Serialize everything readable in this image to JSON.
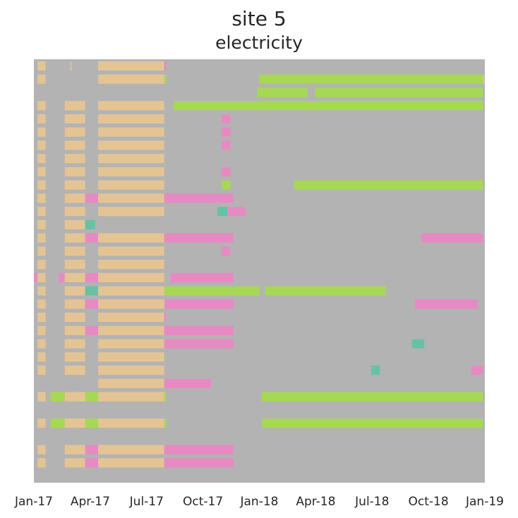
{
  "chart_data": {
    "type": "heatmap",
    "title": "site 5",
    "subtitle": "electricity",
    "xlabel": "",
    "ylabel": "",
    "x_tick_labels": [
      "Jan-17",
      "Apr-17",
      "Jul-17",
      "Oct-17",
      "Jan-18",
      "Apr-18",
      "Jul-18",
      "Oct-18",
      "Jan-19"
    ],
    "x_range": [
      "2017-01-01",
      "2019-01-01"
    ],
    "n_rows": 32,
    "grid": false,
    "legend": "none",
    "colors": {
      "background": "#b3b3b3",
      "beige": "#e5c494",
      "green": "#a6d854",
      "pink": "#e78ac3",
      "teal": "#66c2a5",
      "orange": "#fc8d62"
    },
    "segments": [
      {
        "row": 0,
        "start": "2017-01-07",
        "end": "2017-01-20",
        "color": "beige"
      },
      {
        "row": 0,
        "start": "2017-03-01",
        "end": "2017-03-03",
        "color": "beige"
      },
      {
        "row": 0,
        "start": "2017-04-15",
        "end": "2017-07-31",
        "color": "beige"
      },
      {
        "row": 0,
        "start": "2017-07-31",
        "end": "2017-08-03",
        "color": "pink"
      },
      {
        "row": 1,
        "start": "2017-01-07",
        "end": "2017-01-20",
        "color": "beige"
      },
      {
        "row": 1,
        "start": "2017-04-15",
        "end": "2017-07-31",
        "color": "beige"
      },
      {
        "row": 1,
        "start": "2017-07-31",
        "end": "2017-08-03",
        "color": "green"
      },
      {
        "row": 1,
        "start": "2018-01-01",
        "end": "2018-12-29",
        "color": "green"
      },
      {
        "row": 1,
        "start": "2018-12-29",
        "end": "2018-12-31",
        "color": "beige"
      },
      {
        "row": 2,
        "start": "2017-12-28",
        "end": "2018-03-20",
        "color": "green"
      },
      {
        "row": 2,
        "start": "2018-04-01",
        "end": "2018-12-29",
        "color": "green"
      },
      {
        "row": 3,
        "start": "2017-01-07",
        "end": "2017-01-20",
        "color": "beige"
      },
      {
        "row": 3,
        "start": "2017-02-20",
        "end": "2017-03-25",
        "color": "beige"
      },
      {
        "row": 3,
        "start": "2017-04-15",
        "end": "2017-07-31",
        "color": "beige"
      },
      {
        "row": 3,
        "start": "2017-08-15",
        "end": "2017-12-20",
        "color": "green"
      },
      {
        "row": 3,
        "start": "2017-12-20",
        "end": "2018-12-29",
        "color": "green"
      },
      {
        "row": 4,
        "start": "2017-01-07",
        "end": "2017-01-20",
        "color": "beige"
      },
      {
        "row": 4,
        "start": "2017-02-20",
        "end": "2017-03-25",
        "color": "beige"
      },
      {
        "row": 4,
        "start": "2017-04-15",
        "end": "2017-07-31",
        "color": "beige"
      },
      {
        "row": 4,
        "start": "2017-11-01",
        "end": "2017-11-15",
        "color": "pink"
      },
      {
        "row": 5,
        "start": "2017-01-07",
        "end": "2017-01-20",
        "color": "beige"
      },
      {
        "row": 5,
        "start": "2017-02-20",
        "end": "2017-03-25",
        "color": "beige"
      },
      {
        "row": 5,
        "start": "2017-04-15",
        "end": "2017-07-31",
        "color": "beige"
      },
      {
        "row": 5,
        "start": "2017-11-01",
        "end": "2017-11-15",
        "color": "pink"
      },
      {
        "row": 6,
        "start": "2017-01-07",
        "end": "2017-01-20",
        "color": "beige"
      },
      {
        "row": 6,
        "start": "2017-02-20",
        "end": "2017-03-25",
        "color": "beige"
      },
      {
        "row": 6,
        "start": "2017-04-15",
        "end": "2017-07-31",
        "color": "beige"
      },
      {
        "row": 6,
        "start": "2017-11-01",
        "end": "2017-11-15",
        "color": "pink"
      },
      {
        "row": 7,
        "start": "2017-01-07",
        "end": "2017-01-20",
        "color": "beige"
      },
      {
        "row": 7,
        "start": "2017-02-20",
        "end": "2017-03-25",
        "color": "beige"
      },
      {
        "row": 7,
        "start": "2017-04-15",
        "end": "2017-07-31",
        "color": "beige"
      },
      {
        "row": 8,
        "start": "2017-01-07",
        "end": "2017-01-20",
        "color": "beige"
      },
      {
        "row": 8,
        "start": "2017-02-20",
        "end": "2017-03-25",
        "color": "beige"
      },
      {
        "row": 8,
        "start": "2017-04-15",
        "end": "2017-07-31",
        "color": "beige"
      },
      {
        "row": 8,
        "start": "2017-11-01",
        "end": "2017-11-15",
        "color": "pink"
      },
      {
        "row": 9,
        "start": "2017-01-07",
        "end": "2017-01-20",
        "color": "beige"
      },
      {
        "row": 9,
        "start": "2017-02-20",
        "end": "2017-03-25",
        "color": "beige"
      },
      {
        "row": 9,
        "start": "2017-04-15",
        "end": "2017-07-31",
        "color": "beige"
      },
      {
        "row": 9,
        "start": "2017-11-01",
        "end": "2017-11-15",
        "color": "green"
      },
      {
        "row": 9,
        "start": "2018-02-26",
        "end": "2018-12-29",
        "color": "green"
      },
      {
        "row": 10,
        "start": "2017-01-07",
        "end": "2017-01-20",
        "color": "beige"
      },
      {
        "row": 10,
        "start": "2017-02-20",
        "end": "2017-03-25",
        "color": "beige"
      },
      {
        "row": 10,
        "start": "2017-03-25",
        "end": "2017-04-15",
        "color": "pink"
      },
      {
        "row": 10,
        "start": "2017-04-15",
        "end": "2017-07-31",
        "color": "beige"
      },
      {
        "row": 10,
        "start": "2017-07-31",
        "end": "2017-11-20",
        "color": "pink"
      },
      {
        "row": 11,
        "start": "2017-01-07",
        "end": "2017-01-20",
        "color": "beige"
      },
      {
        "row": 11,
        "start": "2017-02-20",
        "end": "2017-03-25",
        "color": "beige"
      },
      {
        "row": 11,
        "start": "2017-04-15",
        "end": "2017-07-31",
        "color": "beige"
      },
      {
        "row": 11,
        "start": "2017-10-25",
        "end": "2017-11-10",
        "color": "teal"
      },
      {
        "row": 11,
        "start": "2017-11-10",
        "end": "2017-12-10",
        "color": "pink"
      },
      {
        "row": 12,
        "start": "2017-01-07",
        "end": "2017-01-20",
        "color": "beige"
      },
      {
        "row": 12,
        "start": "2017-02-20",
        "end": "2017-03-25",
        "color": "beige"
      },
      {
        "row": 12,
        "start": "2017-03-25",
        "end": "2017-04-10",
        "color": "teal"
      },
      {
        "row": 13,
        "start": "2017-01-07",
        "end": "2017-01-20",
        "color": "beige"
      },
      {
        "row": 13,
        "start": "2017-02-20",
        "end": "2017-03-25",
        "color": "beige"
      },
      {
        "row": 13,
        "start": "2017-03-25",
        "end": "2017-04-15",
        "color": "pink"
      },
      {
        "row": 13,
        "start": "2017-04-15",
        "end": "2017-07-31",
        "color": "beige"
      },
      {
        "row": 13,
        "start": "2017-07-31",
        "end": "2017-11-20",
        "color": "pink"
      },
      {
        "row": 13,
        "start": "2018-09-20",
        "end": "2018-12-29",
        "color": "pink"
      },
      {
        "row": 14,
        "start": "2017-01-07",
        "end": "2017-01-20",
        "color": "beige"
      },
      {
        "row": 14,
        "start": "2017-02-20",
        "end": "2017-03-25",
        "color": "beige"
      },
      {
        "row": 14,
        "start": "2017-04-15",
        "end": "2017-07-31",
        "color": "beige"
      },
      {
        "row": 14,
        "start": "2017-11-01",
        "end": "2017-11-15",
        "color": "pink"
      },
      {
        "row": 15,
        "start": "2017-01-07",
        "end": "2017-01-20",
        "color": "beige"
      },
      {
        "row": 15,
        "start": "2017-02-20",
        "end": "2017-03-25",
        "color": "beige"
      },
      {
        "row": 15,
        "start": "2017-04-15",
        "end": "2017-07-31",
        "color": "beige"
      },
      {
        "row": 16,
        "start": "2016-12-28",
        "end": "2017-01-07",
        "color": "pink"
      },
      {
        "row": 16,
        "start": "2017-01-07",
        "end": "2017-01-20",
        "color": "beige"
      },
      {
        "row": 16,
        "start": "2017-02-10",
        "end": "2017-02-20",
        "color": "pink"
      },
      {
        "row": 16,
        "start": "2017-02-20",
        "end": "2017-03-25",
        "color": "beige"
      },
      {
        "row": 16,
        "start": "2017-03-25",
        "end": "2017-04-15",
        "color": "pink"
      },
      {
        "row": 16,
        "start": "2017-04-15",
        "end": "2017-07-31",
        "color": "beige"
      },
      {
        "row": 16,
        "start": "2017-08-10",
        "end": "2017-11-20",
        "color": "pink"
      },
      {
        "row": 17,
        "start": "2017-01-07",
        "end": "2017-01-20",
        "color": "beige"
      },
      {
        "row": 17,
        "start": "2017-02-20",
        "end": "2017-03-25",
        "color": "beige"
      },
      {
        "row": 17,
        "start": "2017-03-25",
        "end": "2017-04-15",
        "color": "teal"
      },
      {
        "row": 17,
        "start": "2017-04-15",
        "end": "2017-07-31",
        "color": "beige"
      },
      {
        "row": 17,
        "start": "2017-07-31",
        "end": "2017-11-20",
        "color": "green"
      },
      {
        "row": 17,
        "start": "2017-11-20",
        "end": "2018-01-01",
        "color": "green"
      },
      {
        "row": 17,
        "start": "2018-01-10",
        "end": "2018-07-25",
        "color": "green"
      },
      {
        "row": 18,
        "start": "2017-01-07",
        "end": "2017-01-20",
        "color": "beige"
      },
      {
        "row": 18,
        "start": "2017-02-20",
        "end": "2017-03-25",
        "color": "beige"
      },
      {
        "row": 18,
        "start": "2017-03-25",
        "end": "2017-04-15",
        "color": "pink"
      },
      {
        "row": 18,
        "start": "2017-04-15",
        "end": "2017-07-31",
        "color": "beige"
      },
      {
        "row": 18,
        "start": "2017-08-01",
        "end": "2017-11-20",
        "color": "pink"
      },
      {
        "row": 18,
        "start": "2018-09-10",
        "end": "2018-12-20",
        "color": "pink"
      },
      {
        "row": 19,
        "start": "2017-01-07",
        "end": "2017-01-20",
        "color": "beige"
      },
      {
        "row": 19,
        "start": "2017-02-20",
        "end": "2017-03-25",
        "color": "beige"
      },
      {
        "row": 19,
        "start": "2017-04-15",
        "end": "2017-07-31",
        "color": "beige"
      },
      {
        "row": 19,
        "start": "2017-07-31",
        "end": "2017-08-03",
        "color": "pink"
      },
      {
        "row": 20,
        "start": "2017-01-07",
        "end": "2017-01-20",
        "color": "beige"
      },
      {
        "row": 20,
        "start": "2017-02-20",
        "end": "2017-03-25",
        "color": "beige"
      },
      {
        "row": 20,
        "start": "2017-03-25",
        "end": "2017-04-15",
        "color": "pink"
      },
      {
        "row": 20,
        "start": "2017-04-15",
        "end": "2017-07-31",
        "color": "beige"
      },
      {
        "row": 20,
        "start": "2017-07-31",
        "end": "2017-11-20",
        "color": "pink"
      },
      {
        "row": 21,
        "start": "2017-01-07",
        "end": "2017-01-20",
        "color": "beige"
      },
      {
        "row": 21,
        "start": "2017-02-20",
        "end": "2017-03-25",
        "color": "beige"
      },
      {
        "row": 21,
        "start": "2017-04-15",
        "end": "2017-07-31",
        "color": "beige"
      },
      {
        "row": 21,
        "start": "2017-07-31",
        "end": "2017-11-20",
        "color": "pink"
      },
      {
        "row": 21,
        "start": "2018-09-05",
        "end": "2018-09-25",
        "color": "teal"
      },
      {
        "row": 22,
        "start": "2017-01-07",
        "end": "2017-01-20",
        "color": "beige"
      },
      {
        "row": 22,
        "start": "2017-02-20",
        "end": "2017-03-25",
        "color": "beige"
      },
      {
        "row": 22,
        "start": "2017-04-15",
        "end": "2017-07-31",
        "color": "beige"
      },
      {
        "row": 23,
        "start": "2017-01-07",
        "end": "2017-01-20",
        "color": "beige"
      },
      {
        "row": 23,
        "start": "2017-02-20",
        "end": "2017-03-25",
        "color": "beige"
      },
      {
        "row": 23,
        "start": "2017-04-15",
        "end": "2017-07-31",
        "color": "beige"
      },
      {
        "row": 23,
        "start": "2018-07-01",
        "end": "2018-07-15",
        "color": "teal"
      },
      {
        "row": 23,
        "start": "2018-12-10",
        "end": "2018-12-29",
        "color": "pink"
      },
      {
        "row": 24,
        "start": "2017-04-15",
        "end": "2017-07-31",
        "color": "beige"
      },
      {
        "row": 24,
        "start": "2017-07-31",
        "end": "2017-10-15",
        "color": "pink"
      },
      {
        "row": 25,
        "start": "2017-01-07",
        "end": "2017-01-20",
        "color": "beige"
      },
      {
        "row": 25,
        "start": "2017-01-28",
        "end": "2017-02-20",
        "color": "green"
      },
      {
        "row": 25,
        "start": "2017-02-20",
        "end": "2017-03-25",
        "color": "beige"
      },
      {
        "row": 25,
        "start": "2017-03-25",
        "end": "2017-04-15",
        "color": "green"
      },
      {
        "row": 25,
        "start": "2017-04-15",
        "end": "2017-07-31",
        "color": "beige"
      },
      {
        "row": 25,
        "start": "2017-07-31",
        "end": "2017-08-03",
        "color": "green"
      },
      {
        "row": 25,
        "start": "2018-01-05",
        "end": "2018-12-29",
        "color": "green"
      },
      {
        "row": 27,
        "start": "2017-01-07",
        "end": "2017-01-20",
        "color": "beige"
      },
      {
        "row": 27,
        "start": "2017-01-28",
        "end": "2017-02-20",
        "color": "green"
      },
      {
        "row": 27,
        "start": "2017-02-20",
        "end": "2017-03-25",
        "color": "beige"
      },
      {
        "row": 27,
        "start": "2017-03-25",
        "end": "2017-04-15",
        "color": "green"
      },
      {
        "row": 27,
        "start": "2017-04-15",
        "end": "2017-07-31",
        "color": "beige"
      },
      {
        "row": 27,
        "start": "2017-07-31",
        "end": "2017-08-03",
        "color": "green"
      },
      {
        "row": 27,
        "start": "2018-01-05",
        "end": "2018-12-29",
        "color": "green"
      },
      {
        "row": 29,
        "start": "2017-01-07",
        "end": "2017-01-20",
        "color": "beige"
      },
      {
        "row": 29,
        "start": "2017-02-20",
        "end": "2017-03-25",
        "color": "beige"
      },
      {
        "row": 29,
        "start": "2017-03-25",
        "end": "2017-04-15",
        "color": "pink"
      },
      {
        "row": 29,
        "start": "2017-04-15",
        "end": "2017-07-31",
        "color": "beige"
      },
      {
        "row": 29,
        "start": "2017-07-31",
        "end": "2017-11-20",
        "color": "pink"
      },
      {
        "row": 30,
        "start": "2017-01-07",
        "end": "2017-01-20",
        "color": "beige"
      },
      {
        "row": 30,
        "start": "2017-02-20",
        "end": "2017-03-25",
        "color": "beige"
      },
      {
        "row": 30,
        "start": "2017-03-25",
        "end": "2017-04-15",
        "color": "pink"
      },
      {
        "row": 30,
        "start": "2017-04-15",
        "end": "2017-07-31",
        "color": "beige"
      },
      {
        "row": 30,
        "start": "2017-07-31",
        "end": "2017-11-20",
        "color": "pink"
      }
    ]
  }
}
